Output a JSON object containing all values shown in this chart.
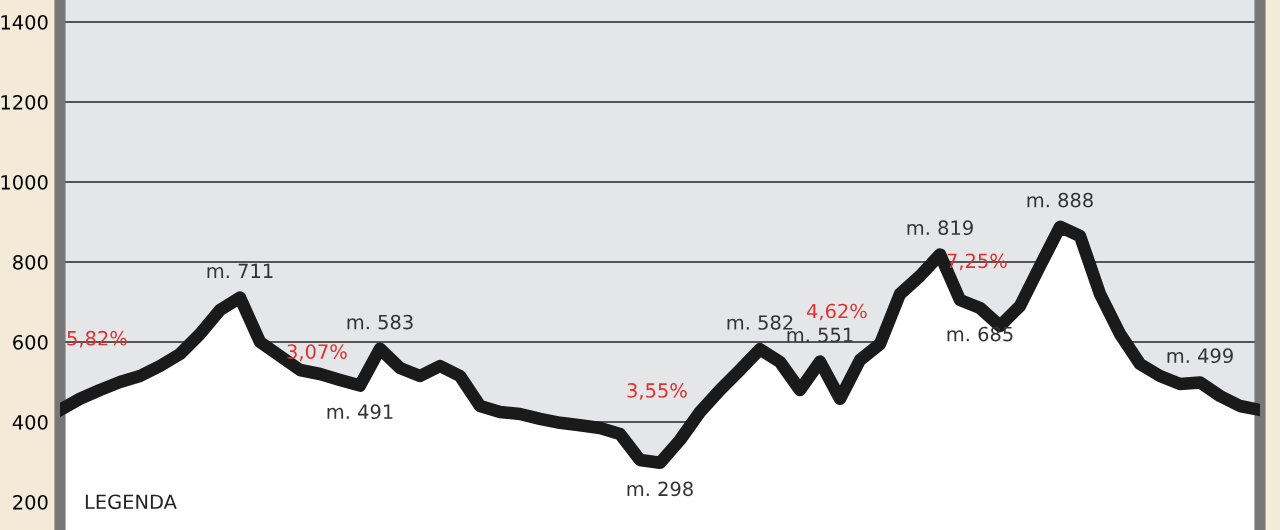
{
  "chart_data": {
    "type": "area",
    "tick_labels": "y",
    "grid": "y",
    "categories": [
      null,
      null,
      null,
      null,
      null,
      null,
      null,
      null,
      null,
      null,
      null,
      null,
      null,
      null,
      null,
      null,
      null,
      null,
      null,
      null,
      null,
      null,
      null,
      null,
      null,
      null,
      null,
      null,
      null,
      null,
      null,
      null,
      null,
      null,
      null,
      null,
      null,
      null,
      null,
      null,
      null,
      null,
      null,
      null,
      null,
      null,
      null,
      null,
      null,
      null,
      null,
      null,
      null,
      null,
      null,
      null,
      null,
      null,
      null,
      null,
      null
    ],
    "ylim": [
      130,
      1455
    ],
    "yticks": [
      200,
      400,
      600,
      800,
      1000,
      1200,
      1400
    ],
    "series": [
      {
        "color": "#1a1a1a",
        "values": [
          430,
          458,
          480,
          500,
          515,
          540,
          570,
          620,
          680,
          711,
          600,
          565,
          530,
          520,
          505,
          491,
          583,
          535,
          515,
          540,
          515,
          440,
          425,
          420,
          408,
          398,
          392,
          385,
          370,
          305,
          298,
          355,
          425,
          480,
          530,
          582,
          550,
          480,
          551,
          458,
          555,
          595,
          720,
          765,
          819,
          705,
          685,
          640,
          690,
          790,
          888,
          865,
          720,
          620,
          545,
          515,
          495,
          499,
          465,
          440,
          430
        ],
        "value_labels": [
          null,
          null,
          null,
          null,
          null,
          null,
          null,
          null,
          null,
          "m. 711",
          null,
          null,
          null,
          null,
          null,
          "m. 491",
          "m. 583",
          null,
          null,
          null,
          null,
          null,
          null,
          null,
          null,
          null,
          null,
          null,
          null,
          null,
          "m. 298",
          null,
          null,
          null,
          null,
          "m. 582",
          null,
          null,
          "m. 551",
          null,
          null,
          null,
          null,
          null,
          "m. 819",
          null,
          "m. 685",
          null,
          null,
          null,
          "m. 888",
          null,
          null,
          null,
          null,
          null,
          null,
          "m. 499",
          null,
          null,
          null
        ]
      }
    ],
    "annotations": [
      "5,82%",
      "3,07%",
      "3,55%",
      "4,62%",
      "7,25%",
      "LEGENDA"
    ]
  }
}
